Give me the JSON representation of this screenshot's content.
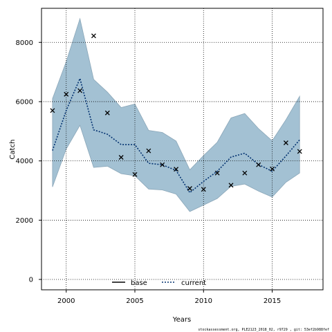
{
  "chart_data": {
    "type": "line",
    "xlabel": "Years",
    "ylabel": "Catch",
    "xlim": [
      1998.2,
      2018.7
    ],
    "ylim": [
      -350,
      9150
    ],
    "x_ticks": [
      2000,
      2005,
      2010,
      2015
    ],
    "x_tick_labels": [
      "2000",
      "2005",
      "2010",
      "2015"
    ],
    "y_ticks": [
      0,
      2000,
      4000,
      6000,
      8000
    ],
    "y_tick_labels": [
      "0",
      "2000",
      "4000",
      "6000",
      "8000"
    ],
    "grid": true,
    "legend_position": "bottom-center",
    "legend": [
      {
        "label": "base",
        "style": "solid"
      },
      {
        "label": "current",
        "style": "dotted"
      }
    ],
    "footer_note": "stockassessment.org, PLE2123_2018_02, r9729 , git: 53ef2b988fef",
    "colors": {
      "band": "#a3c1d3",
      "band_edge": "#8aa6b8",
      "line": "#000000",
      "grid": "#000000"
    },
    "series": [
      {
        "name": "current",
        "type": "line",
        "x": [
          1999,
          2000,
          2001,
          2002,
          2003,
          2004,
          2005,
          2006,
          2007,
          2008,
          2009,
          2010,
          2011,
          2012,
          2013,
          2014,
          2015,
          2016,
          2017
        ],
        "y": [
          4350,
          5700,
          6780,
          5050,
          4900,
          4550,
          4550,
          3920,
          3870,
          3680,
          2930,
          3310,
          3650,
          4130,
          4260,
          3880,
          3650,
          4170,
          4710
        ]
      },
      {
        "name": "confidence band",
        "type": "area",
        "x": [
          1999,
          2000,
          2001,
          2002,
          2003,
          2004,
          2005,
          2006,
          2007,
          2008,
          2009,
          2010,
          2011,
          2012,
          2013,
          2014,
          2015,
          2016,
          2017
        ],
        "upper": [
          6100,
          7350,
          8800,
          6750,
          6320,
          5800,
          5920,
          5030,
          4960,
          4670,
          3700,
          4180,
          4630,
          5450,
          5600,
          5090,
          4680,
          5390,
          6180
        ],
        "lower": [
          3120,
          4400,
          5200,
          3780,
          3820,
          3570,
          3500,
          3050,
          3020,
          2880,
          2290,
          2510,
          2730,
          3140,
          3220,
          2980,
          2780,
          3280,
          3590
        ]
      },
      {
        "name": "observations",
        "type": "scatter",
        "marker": "x",
        "x": [
          1999,
          2000,
          2001,
          2002,
          2003,
          2004,
          2005,
          2006,
          2007,
          2008,
          2009,
          2010,
          2011,
          2012,
          2013,
          2014,
          2015,
          2016,
          2017
        ],
        "y": [
          5700,
          6250,
          6370,
          8220,
          5620,
          4120,
          3540,
          4340,
          3870,
          3720,
          3070,
          3040,
          3590,
          3180,
          3590,
          3870,
          3730,
          4610,
          4320
        ]
      }
    ]
  }
}
